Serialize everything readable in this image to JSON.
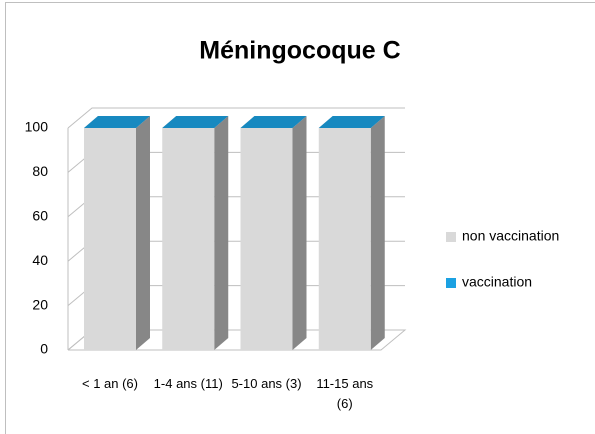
{
  "chart_data": {
    "type": "bar3d_stacked",
    "title": "Méningocoque C",
    "categories": [
      "< 1 an (6)",
      "1-4 ans (11)",
      "5-10 ans (3)",
      "11-15 ans (6)"
    ],
    "series": [
      {
        "name": "non vaccination",
        "color": "#d9d9d9",
        "values": [
          100,
          100,
          100,
          100
        ]
      },
      {
        "name": "vaccination",
        "color": "#1ba1e2",
        "values": [
          0,
          0,
          0,
          0
        ]
      }
    ],
    "ylim": [
      0,
      100
    ],
    "yticks": [
      0,
      20,
      40,
      60,
      80,
      100
    ],
    "grid": true,
    "legend": "right"
  }
}
